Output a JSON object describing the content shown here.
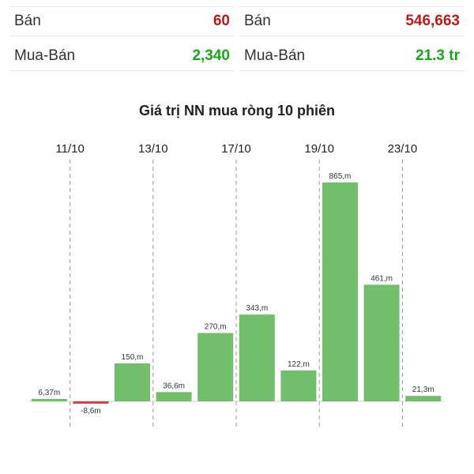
{
  "stats": {
    "left": {
      "row1": {
        "label": "Bán",
        "value": "60"
      },
      "row2": {
        "label": "Mua-Bán",
        "value": "2,340"
      }
    },
    "right": {
      "row1": {
        "label": "Bán",
        "value": "546,663"
      },
      "row2": {
        "label": "Mua-Bán",
        "value": "21.3 tr"
      }
    }
  },
  "colors": {
    "positive": "#72be6a",
    "negative": "#c94a4a",
    "sell": "#b71c1c",
    "buy": "#1aa51a"
  },
  "chart_data": {
    "type": "bar",
    "title": "Giá trị NN mua ròng 10 phiên",
    "xlabel": "",
    "ylabel": "",
    "categories": [
      "",
      "",
      "",
      "",
      "",
      "",
      "",
      "",
      "",
      ""
    ],
    "values": [
      6.37,
      -8.6,
      150,
      36.6,
      270,
      343,
      122,
      865,
      461,
      21.3
    ],
    "data_labels": [
      "6,37m",
      "-8,6m",
      "150,m",
      "36,6m",
      "270,m",
      "343,m",
      "122,m",
      "865,m",
      "461,m",
      "21,3m"
    ],
    "date_ticks": [
      "11/10",
      "13/10",
      "17/10",
      "19/10",
      "23/10"
    ],
    "date_tick_slots": [
      0.5,
      2.5,
      4.5,
      6.5,
      8.5
    ],
    "ylim": [
      -20,
      900
    ],
    "grid": false
  }
}
